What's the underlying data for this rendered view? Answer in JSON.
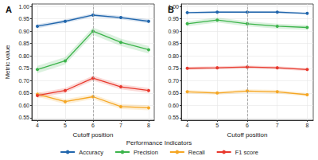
{
  "chart_data": [
    {
      "type": "line",
      "title": "A",
      "xlabel": "Cutoff position",
      "ylabel": "Metric value",
      "x": [
        4,
        5,
        6,
        7,
        8
      ],
      "xlim": [
        3.8,
        8.2
      ],
      "xticks": [
        4,
        5,
        6,
        7,
        8
      ],
      "ylim": [
        0.54,
        1.01
      ],
      "yticks": [
        0.55,
        {
          "value": 0.6,
          "label": "0.60"
        },
        0.65,
        {
          "value": 0.7,
          "label": "0.70"
        },
        0.75,
        {
          "value": 0.8,
          "label": "0.80"
        },
        0.85,
        {
          "value": 0.9,
          "label": "0.90"
        },
        0.95,
        {
          "value": 1.0,
          "label": "1.00"
        }
      ],
      "grid": true,
      "marker": "circle",
      "line_style": "solid",
      "vline": 6,
      "legend": "bottom",
      "legend_title": "Performance Indicators",
      "series": [
        {
          "name": "Accuracy",
          "color": "#2166ac",
          "values": [
            0.92,
            0.94,
            0.965,
            0.955,
            0.94
          ],
          "lower": [
            0.912,
            0.933,
            0.958,
            0.948,
            0.932
          ],
          "upper": [
            0.928,
            0.947,
            0.972,
            0.962,
            0.948
          ]
        },
        {
          "name": "Precision",
          "color": "#3cb44b",
          "values": [
            0.745,
            0.78,
            0.9,
            0.855,
            0.825
          ],
          "lower": [
            0.73,
            0.765,
            0.885,
            0.84,
            0.81
          ],
          "upper": [
            0.76,
            0.795,
            0.915,
            0.87,
            0.84
          ]
        },
        {
          "name": "Recall",
          "color": "#f5a623",
          "values": [
            0.645,
            0.615,
            0.635,
            0.595,
            0.59
          ],
          "lower": [
            0.635,
            0.605,
            0.625,
            0.585,
            0.58
          ],
          "upper": [
            0.655,
            0.625,
            0.645,
            0.605,
            0.6
          ]
        },
        {
          "name": "F1 score",
          "color": "#e8392d",
          "values": [
            0.64,
            0.66,
            0.71,
            0.675,
            0.66
          ],
          "lower": [
            0.63,
            0.65,
            0.7,
            0.665,
            0.65
          ],
          "upper": [
            0.65,
            0.67,
            0.72,
            0.685,
            0.67
          ]
        }
      ]
    },
    {
      "type": "line",
      "title": "B",
      "xlabel": "Cutoff position",
      "x": [
        4,
        5,
        6,
        7,
        8
      ],
      "xlim": [
        3.8,
        8.2
      ],
      "xticks": [
        4,
        5,
        6,
        7,
        8
      ],
      "ylim": [
        0.54,
        1.01
      ],
      "yticks": [
        0.55,
        {
          "value": 0.6,
          "label": "0.60"
        },
        0.65,
        {
          "value": 0.7,
          "label": "0.70"
        },
        0.75,
        {
          "value": 0.8,
          "label": "0.80"
        },
        0.85,
        {
          "value": 0.9,
          "label": "0.90"
        },
        0.95,
        {
          "value": 1.0,
          "label": "1.00"
        }
      ],
      "grid": true,
      "marker": "circle",
      "line_style": "solid",
      "vline": 6,
      "series": [
        {
          "name": "Accuracy",
          "color": "#2166ac",
          "values": [
            0.975,
            0.977,
            0.977,
            0.977,
            0.972
          ],
          "lower": [
            0.971,
            0.973,
            0.973,
            0.973,
            0.968
          ],
          "upper": [
            0.979,
            0.981,
            0.981,
            0.981,
            0.976
          ]
        },
        {
          "name": "Precision",
          "color": "#3cb44b",
          "values": [
            0.93,
            0.945,
            0.93,
            0.92,
            0.915
          ],
          "lower": [
            0.92,
            0.935,
            0.92,
            0.91,
            0.905
          ],
          "upper": [
            0.94,
            0.955,
            0.94,
            0.93,
            0.925
          ]
        },
        {
          "name": "Recall",
          "color": "#f5a623",
          "values": [
            0.655,
            0.65,
            0.658,
            0.655,
            0.643
          ],
          "lower": [
            0.648,
            0.643,
            0.651,
            0.648,
            0.636
          ],
          "upper": [
            0.662,
            0.657,
            0.665,
            0.662,
            0.65
          ]
        },
        {
          "name": "F1 score",
          "color": "#e8392d",
          "values": [
            0.75,
            0.752,
            0.755,
            0.752,
            0.745
          ],
          "lower": [
            0.744,
            0.746,
            0.749,
            0.746,
            0.739
          ],
          "upper": [
            0.756,
            0.758,
            0.761,
            0.758,
            0.751
          ]
        }
      ]
    }
  ]
}
